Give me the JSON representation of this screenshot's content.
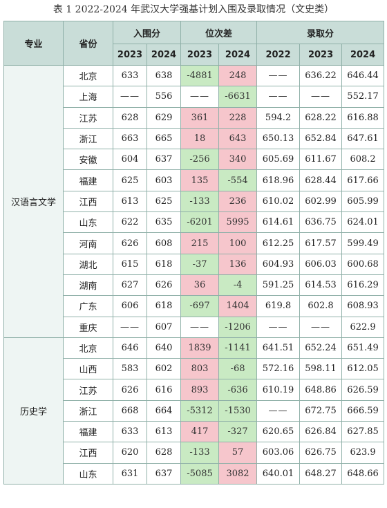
{
  "title": "表 1 2022-2024 年武汉大学强基计划入围及录取情况（文史类）",
  "headers": {
    "major": "专业",
    "province": "省份",
    "cutoff": "入围分",
    "rank_diff": "位次差",
    "admission": "录取分",
    "y2023": "2023",
    "y2024": "2024",
    "y2022": "2022"
  },
  "colors": {
    "positive": "#f6c6cc",
    "negative": "#c9eac3",
    "header": "#c9ddd8"
  },
  "groups": [
    {
      "major": "汉语言文学",
      "rows": [
        {
          "province": "北京",
          "c2023": "633",
          "c2024": "638",
          "r2023": "-4881",
          "r2024": "248",
          "a2022": "——",
          "a2023": "636.22",
          "a2024": "646.44"
        },
        {
          "province": "上海",
          "c2023": "——",
          "c2024": "556",
          "r2023": "——",
          "r2024": "-6631",
          "a2022": "——",
          "a2023": "——",
          "a2024": "552.17"
        },
        {
          "province": "江苏",
          "c2023": "628",
          "c2024": "629",
          "r2023": "361",
          "r2024": "228",
          "a2022": "594.2",
          "a2023": "628.22",
          "a2024": "616.88"
        },
        {
          "province": "浙江",
          "c2023": "663",
          "c2024": "665",
          "r2023": "18",
          "r2024": "643",
          "a2022": "650.13",
          "a2023": "652.84",
          "a2024": "647.61"
        },
        {
          "province": "安徽",
          "c2023": "604",
          "c2024": "637",
          "r2023": "-256",
          "r2024": "340",
          "a2022": "605.69",
          "a2023": "611.67",
          "a2024": "608.2"
        },
        {
          "province": "福建",
          "c2023": "625",
          "c2024": "603",
          "r2023": "135",
          "r2024": "-554",
          "a2022": "618.96",
          "a2023": "628.44",
          "a2024": "617.66"
        },
        {
          "province": "江西",
          "c2023": "613",
          "c2024": "625",
          "r2023": "-133",
          "r2024": "236",
          "a2022": "610.02",
          "a2023": "602.99",
          "a2024": "605.99"
        },
        {
          "province": "山东",
          "c2023": "622",
          "c2024": "635",
          "r2023": "-6201",
          "r2024": "5995",
          "a2022": "614.61",
          "a2023": "636.75",
          "a2024": "624.01"
        },
        {
          "province": "河南",
          "c2023": "626",
          "c2024": "608",
          "r2023": "215",
          "r2024": "100",
          "a2022": "612.25",
          "a2023": "617.57",
          "a2024": "599.49"
        },
        {
          "province": "湖北",
          "c2023": "615",
          "c2024": "618",
          "r2023": "-37",
          "r2024": "136",
          "a2022": "604.93",
          "a2023": "606.03",
          "a2024": "600.68"
        },
        {
          "province": "湖南",
          "c2023": "627",
          "c2024": "626",
          "r2023": "36",
          "r2024": "-4",
          "a2022": "591.25",
          "a2023": "614.53",
          "a2024": "616.29"
        },
        {
          "province": "广东",
          "c2023": "606",
          "c2024": "618",
          "r2023": "-697",
          "r2024": "1404",
          "a2022": "619.8",
          "a2023": "602.8",
          "a2024": "608.93"
        },
        {
          "province": "重庆",
          "c2023": "——",
          "c2024": "607",
          "r2023": "——",
          "r2024": "-1206",
          "a2022": "——",
          "a2023": "——",
          "a2024": "622.9"
        }
      ]
    },
    {
      "major": "历史学",
      "rows": [
        {
          "province": "北京",
          "c2023": "646",
          "c2024": "640",
          "r2023": "1839",
          "r2024": "-1141",
          "a2022": "641.51",
          "a2023": "652.24",
          "a2024": "651.49"
        },
        {
          "province": "山西",
          "c2023": "583",
          "c2024": "602",
          "r2023": "803",
          "r2024": "-68",
          "a2022": "572.16",
          "a2023": "598.11",
          "a2024": "612.05"
        },
        {
          "province": "江苏",
          "c2023": "626",
          "c2024": "616",
          "r2023": "893",
          "r2024": "-636",
          "a2022": "610.19",
          "a2023": "648.86",
          "a2024": "626.59"
        },
        {
          "province": "浙江",
          "c2023": "668",
          "c2024": "664",
          "r2023": "-5312",
          "r2024": "-1530",
          "a2022": "——",
          "a2023": "672.75",
          "a2024": "666.59"
        },
        {
          "province": "福建",
          "c2023": "633",
          "c2024": "613",
          "r2023": "417",
          "r2024": "-327",
          "a2022": "620.65",
          "a2023": "626.84",
          "a2024": "627.85"
        },
        {
          "province": "江西",
          "c2023": "620",
          "c2024": "628",
          "r2023": "-133",
          "r2024": "57",
          "a2022": "603.06",
          "a2023": "626.75",
          "a2024": "623.9"
        },
        {
          "province": "山东",
          "c2023": "631",
          "c2024": "637",
          "r2023": "-5085",
          "r2024": "3082",
          "a2022": "640.01",
          "a2023": "648.27",
          "a2024": "648.66"
        }
      ]
    }
  ]
}
